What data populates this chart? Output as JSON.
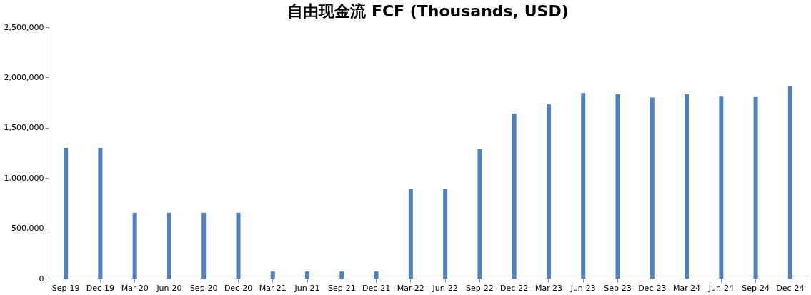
{
  "chart_data": {
    "type": "bar",
    "title": "自由现金流 FCF (Thousands, USD)",
    "categories": [
      "Sep-19",
      "Dec-19",
      "Mar-20",
      "Jun-20",
      "Sep-20",
      "Dec-20",
      "Mar-21",
      "Jun-21",
      "Sep-21",
      "Dec-21",
      "Mar-22",
      "Jun-22",
      "Sep-22",
      "Dec-22",
      "Mar-23",
      "Jun-23",
      "Sep-23",
      "Dec-23",
      "Mar-24",
      "Jun-24",
      "Sep-24",
      "Dec-24"
    ],
    "values": [
      1300000,
      1300000,
      655000,
      655000,
      655000,
      655000,
      70000,
      70000,
      70000,
      70000,
      895000,
      895000,
      1290000,
      1640000,
      1735000,
      1845000,
      1835000,
      1800000,
      1835000,
      1810000,
      1805000,
      1915000
    ],
    "color": "#4f81bd",
    "ylim": [
      0,
      2500000
    ],
    "yticks": [
      0,
      {
        "value": 500000,
        "label": "500,000"
      },
      {
        "value": 1000000,
        "label": "1,000,000"
      },
      {
        "value": 1500000,
        "label": "1,500,000"
      },
      {
        "value": 2000000,
        "label": "2,000,000"
      },
      {
        "value": 2500000,
        "label": "2,500,000"
      }
    ],
    "grid": false
  }
}
